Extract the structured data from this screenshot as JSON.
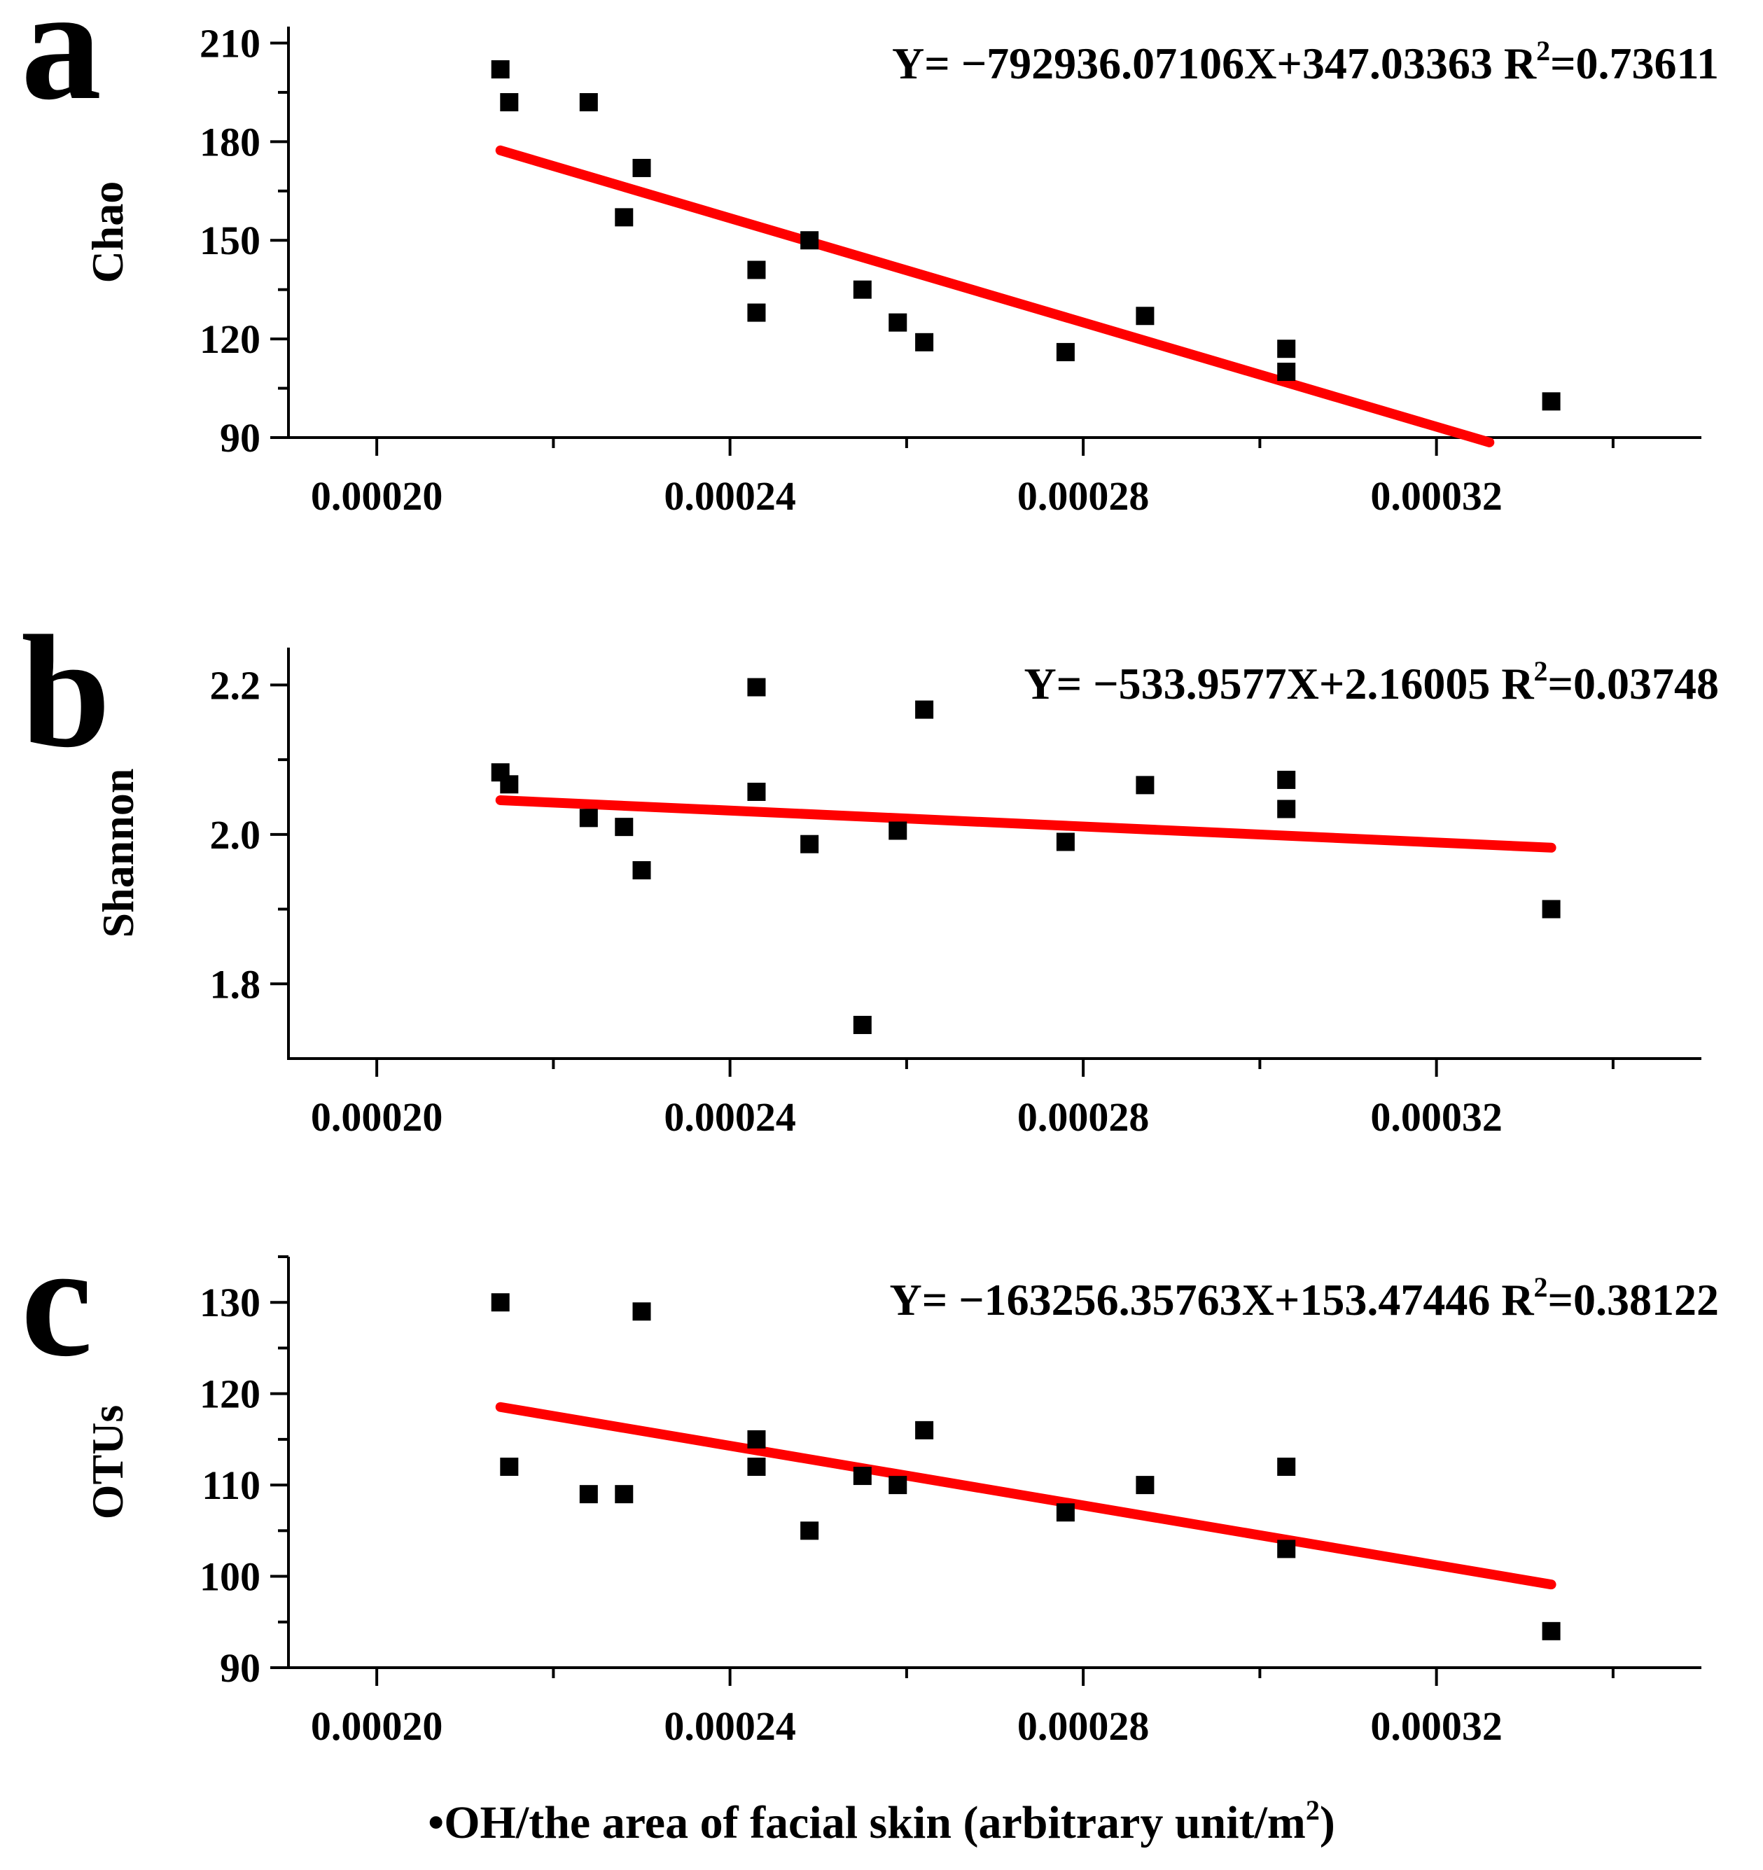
{
  "figure": {
    "x_axis_label": "•OH/the area of facial skin (arbitrary unit/m",
    "x_axis_label_sup": "2",
    "x_axis_label_end": ")"
  },
  "colors": {
    "points": "#000000",
    "fit_line": "#ff0000",
    "axes": "#000000"
  },
  "chart_data": [
    {
      "type": "scatter",
      "panel_letter": "a",
      "ylabel": "Chao",
      "equation": "Y= −792936.07106X+347.03363  R",
      "r2_sup": "2",
      "r2_value": "=0.73611",
      "xlim": [
        0.00019,
        0.00035
      ],
      "ylim": [
        90,
        215
      ],
      "xticks": [
        0.0002,
        0.00024,
        0.00028,
        0.00032
      ],
      "xtick_labels": [
        "0.00020",
        "0.00024",
        "0.00028",
        "0.00032"
      ],
      "yticks": [
        90,
        120,
        150,
        180,
        210
      ],
      "ytick_labels": [
        "90",
        "120",
        "150",
        "180",
        "210"
      ],
      "fit": {
        "slope": -792936.07106,
        "intercept": 347.03363,
        "x_range": [
          0.000214,
          0.000326
        ]
      },
      "points": [
        {
          "x": 0.000214,
          "y": 202
        },
        {
          "x": 0.000215,
          "y": 192
        },
        {
          "x": 0.000224,
          "y": 192
        },
        {
          "x": 0.000228,
          "y": 157
        },
        {
          "x": 0.00023,
          "y": 172
        },
        {
          "x": 0.000243,
          "y": 141
        },
        {
          "x": 0.000243,
          "y": 128
        },
        {
          "x": 0.000249,
          "y": 150
        },
        {
          "x": 0.000255,
          "y": 135
        },
        {
          "x": 0.000259,
          "y": 125
        },
        {
          "x": 0.000262,
          "y": 119
        },
        {
          "x": 0.000278,
          "y": 116
        },
        {
          "x": 0.000287,
          "y": 127
        },
        {
          "x": 0.000303,
          "y": 117
        },
        {
          "x": 0.000303,
          "y": 110
        },
        {
          "x": 0.000333,
          "y": 101
        }
      ]
    },
    {
      "type": "scatter",
      "panel_letter": "b",
      "ylabel": "Shannon",
      "equation": "Y= −533.9577X+2.16005  R",
      "r2_sup": "2",
      "r2_value": "=0.03748",
      "xlim": [
        0.00019,
        0.00035
      ],
      "ylim": [
        1.7,
        2.25
      ],
      "xticks": [
        0.0002,
        0.00024,
        0.00028,
        0.00032
      ],
      "xtick_labels": [
        "0.00020",
        "0.00024",
        "0.00028",
        "0.00032"
      ],
      "yticks": [
        1.8,
        2.0,
        2.2
      ],
      "ytick_labels": [
        "1.8",
        "2.0",
        "2.2"
      ],
      "fit": {
        "slope": -533.9577,
        "intercept": 2.16005,
        "x_range": [
          0.000214,
          0.000333
        ]
      },
      "points": [
        {
          "x": 0.000214,
          "y": 2.083
        },
        {
          "x": 0.000215,
          "y": 2.067
        },
        {
          "x": 0.000224,
          "y": 2.022
        },
        {
          "x": 0.000228,
          "y": 2.01
        },
        {
          "x": 0.00023,
          "y": 1.952
        },
        {
          "x": 0.000243,
          "y": 2.197
        },
        {
          "x": 0.000243,
          "y": 2.057
        },
        {
          "x": 0.000249,
          "y": 1.987
        },
        {
          "x": 0.000255,
          "y": 1.745
        },
        {
          "x": 0.000259,
          "y": 2.005
        },
        {
          "x": 0.000262,
          "y": 2.167
        },
        {
          "x": 0.000278,
          "y": 1.99
        },
        {
          "x": 0.000287,
          "y": 2.066
        },
        {
          "x": 0.000303,
          "y": 2.073
        },
        {
          "x": 0.000303,
          "y": 2.034
        },
        {
          "x": 0.000333,
          "y": 1.9
        }
      ]
    },
    {
      "type": "scatter",
      "panel_letter": "c",
      "ylabel": "OTUs",
      "equation": "Y= −163256.35763X+153.47446  R",
      "r2_sup": "2",
      "r2_value": "=0.38122",
      "xlim": [
        0.00019,
        0.00035
      ],
      "ylim": [
        90,
        135
      ],
      "xticks": [
        0.0002,
        0.00024,
        0.00028,
        0.00032
      ],
      "xtick_labels": [
        "0.00020",
        "0.00024",
        "0.00028",
        "0.00032"
      ],
      "yticks": [
        90,
        100,
        110,
        120,
        130
      ],
      "ytick_labels": [
        "90",
        "100",
        "110",
        "120",
        "130"
      ],
      "fit": {
        "slope": -163256.35763,
        "intercept": 153.47446,
        "x_range": [
          0.000214,
          0.000333
        ]
      },
      "points": [
        {
          "x": 0.000214,
          "y": 130
        },
        {
          "x": 0.000215,
          "y": 112
        },
        {
          "x": 0.000224,
          "y": 109
        },
        {
          "x": 0.000228,
          "y": 109
        },
        {
          "x": 0.00023,
          "y": 129
        },
        {
          "x": 0.000243,
          "y": 112
        },
        {
          "x": 0.000243,
          "y": 115
        },
        {
          "x": 0.000249,
          "y": 105
        },
        {
          "x": 0.000255,
          "y": 111
        },
        {
          "x": 0.000259,
          "y": 110
        },
        {
          "x": 0.000262,
          "y": 116
        },
        {
          "x": 0.000278,
          "y": 107
        },
        {
          "x": 0.000287,
          "y": 110
        },
        {
          "x": 0.000303,
          "y": 112
        },
        {
          "x": 0.000303,
          "y": 103
        },
        {
          "x": 0.000333,
          "y": 94
        }
      ]
    }
  ]
}
